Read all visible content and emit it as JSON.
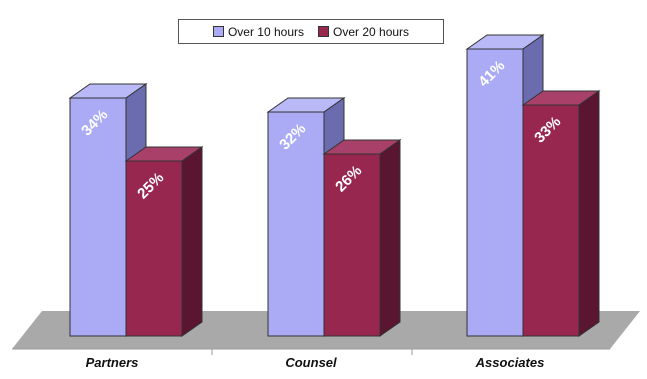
{
  "chart_data": {
    "type": "bar",
    "title": "",
    "xlabel": "",
    "ylabel": "",
    "ylim": [
      0,
      45
    ],
    "grid": false,
    "legend_position": "top-center",
    "categories": [
      "Partners",
      "Counsel",
      "Associates"
    ],
    "series": [
      {
        "name": "Over 10 hours",
        "color": "#aaaaf5",
        "values": [
          34,
          32,
          41
        ],
        "labels": [
          "34%",
          "32%",
          "41%"
        ]
      },
      {
        "name": "Over 20 hours",
        "color": "#97274f",
        "values": [
          25,
          26,
          33
        ],
        "labels": [
          "25%",
          "26%",
          "33%"
        ]
      }
    ]
  }
}
